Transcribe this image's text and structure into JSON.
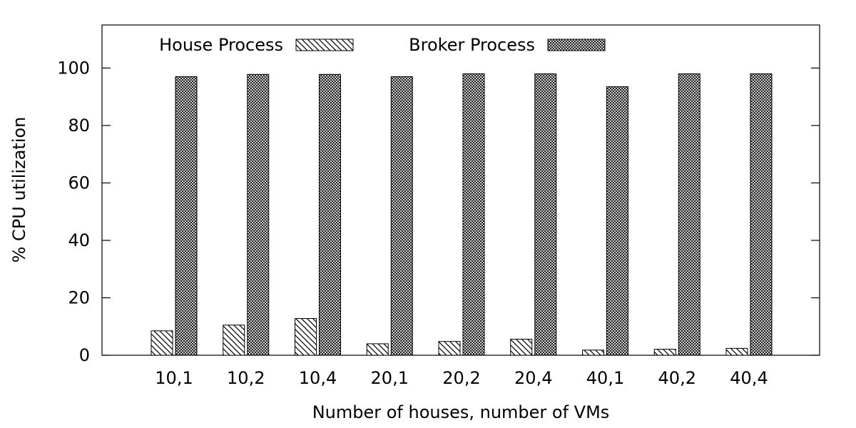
{
  "chart_data": {
    "type": "bar",
    "title": "",
    "xlabel": "Number of houses, number of VMs",
    "ylabel": "% CPU utilization",
    "categories": [
      "10,1",
      "10,2",
      "10,4",
      "20,1",
      "20,2",
      "20,4",
      "40,1",
      "40,2",
      "40,4"
    ],
    "series": [
      {
        "name": "House Process",
        "pattern": "diagonal-hatch",
        "values": [
          8.5,
          10.5,
          12.8,
          4.0,
          4.8,
          5.6,
          1.8,
          2.1,
          2.4
        ]
      },
      {
        "name": "Broker Process",
        "pattern": "crosshatch",
        "values": [
          97.0,
          97.8,
          97.8,
          97.0,
          98.0,
          98.0,
          93.5,
          98.0,
          98.0
        ]
      }
    ],
    "ylim": [
      0,
      115
    ],
    "yticks": [
      0,
      20,
      40,
      60,
      80,
      100
    ],
    "grid": false,
    "legend_position": "top-left",
    "colors": {
      "fill": "#ffffff",
      "stroke": "#000000"
    }
  }
}
